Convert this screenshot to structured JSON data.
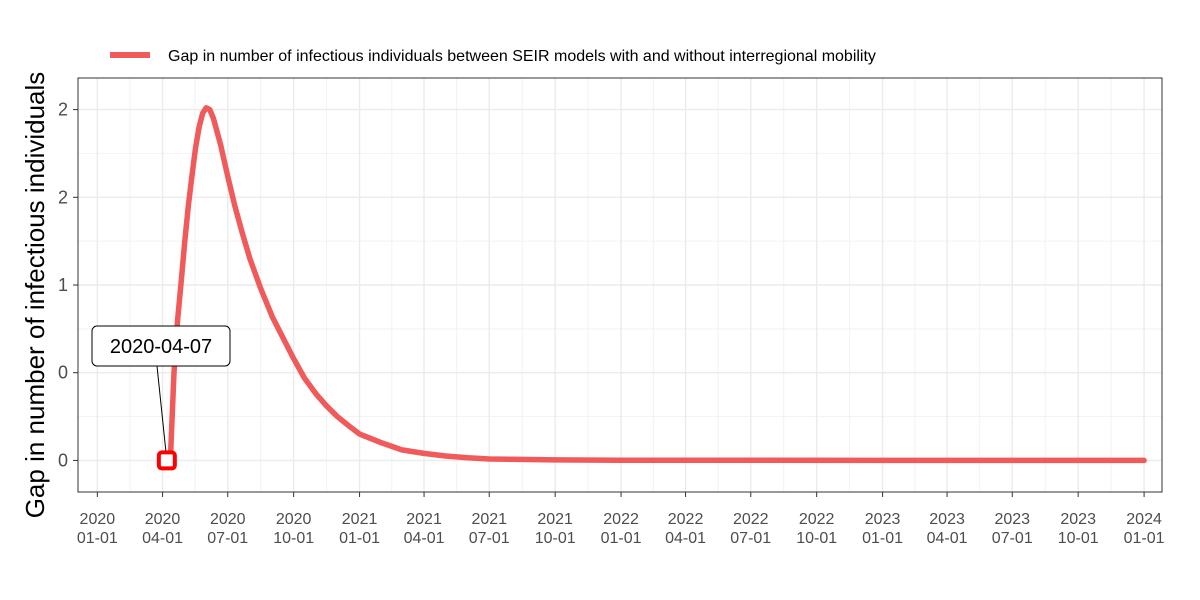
{
  "chart_data": {
    "type": "line",
    "ylabel": "Gap in number of infectious individuals",
    "xlabel": "",
    "legend": {
      "position": "top",
      "entries": [
        "Gap in number of infectious individuals between SEIR models with and without interregional mobility"
      ]
    },
    "grid": true,
    "x_range": [
      "2019-12-05",
      "2024-01-26"
    ],
    "y_range": [
      -0.18,
      2.18
    ],
    "x_ticks": [
      {
        "date": "2020-01-01",
        "label": [
          "2020",
          "01-01"
        ]
      },
      {
        "date": "2020-04-01",
        "label": [
          "2020",
          "04-01"
        ]
      },
      {
        "date": "2020-07-01",
        "label": [
          "2020",
          "07-01"
        ]
      },
      {
        "date": "2020-10-01",
        "label": [
          "2020",
          "10-01"
        ]
      },
      {
        "date": "2021-01-01",
        "label": [
          "2021",
          "01-01"
        ]
      },
      {
        "date": "2021-04-01",
        "label": [
          "2021",
          "04-01"
        ]
      },
      {
        "date": "2021-07-01",
        "label": [
          "2021",
          "07-01"
        ]
      },
      {
        "date": "2021-10-01",
        "label": [
          "2021",
          "10-01"
        ]
      },
      {
        "date": "2022-01-01",
        "label": [
          "2022",
          "01-01"
        ]
      },
      {
        "date": "2022-04-01",
        "label": [
          "2022",
          "04-01"
        ]
      },
      {
        "date": "2022-07-01",
        "label": [
          "2022",
          "07-01"
        ]
      },
      {
        "date": "2022-10-01",
        "label": [
          "2022",
          "10-01"
        ]
      },
      {
        "date": "2023-01-01",
        "label": [
          "2023",
          "01-01"
        ]
      },
      {
        "date": "2023-04-01",
        "label": [
          "2023",
          "04-01"
        ]
      },
      {
        "date": "2023-07-01",
        "label": [
          "2023",
          "07-01"
        ]
      },
      {
        "date": "2023-10-01",
        "label": [
          "2023",
          "10-01"
        ]
      },
      {
        "date": "2024-01-01",
        "label": [
          "2024",
          "01-01"
        ]
      }
    ],
    "y_ticks": [
      {
        "value": 0,
        "label": "0"
      },
      {
        "value": 0.5,
        "label": "0"
      },
      {
        "value": 1.0,
        "label": "1"
      },
      {
        "value": 1.5,
        "label": "2"
      },
      {
        "value": 2.0,
        "label": "2"
      }
    ],
    "series": [
      {
        "name": "Gap in number of infectious individuals between SEIR models with and without interregional mobility",
        "color": "#f05a5a",
        "x": [
          "2020-04-07",
          "2020-04-12",
          "2020-04-17",
          "2020-04-22",
          "2020-04-27",
          "2020-05-02",
          "2020-05-07",
          "2020-05-12",
          "2020-05-17",
          "2020-05-22",
          "2020-05-27",
          "2020-06-01",
          "2020-06-06",
          "2020-06-11",
          "2020-06-21",
          "2020-07-01",
          "2020-07-11",
          "2020-07-21",
          "2020-08-01",
          "2020-08-16",
          "2020-09-01",
          "2020-09-16",
          "2020-10-01",
          "2020-10-16",
          "2020-11-01",
          "2020-11-16",
          "2020-12-01",
          "2020-12-16",
          "2021-01-01",
          "2021-02-01",
          "2021-03-01",
          "2021-04-01",
          "2021-05-01",
          "2021-06-01",
          "2021-07-01",
          "2021-10-01",
          "2022-01-01",
          "2023-01-01",
          "2024-01-01"
        ],
        "y": [
          0.0,
          0.01,
          0.5,
          0.8,
          1.02,
          1.25,
          1.45,
          1.62,
          1.78,
          1.9,
          1.98,
          2.01,
          2.0,
          1.95,
          1.8,
          1.62,
          1.45,
          1.3,
          1.15,
          0.98,
          0.82,
          0.7,
          0.58,
          0.47,
          0.38,
          0.31,
          0.25,
          0.2,
          0.15,
          0.1,
          0.06,
          0.04,
          0.025,
          0.015,
          0.008,
          0.003,
          0.001,
          0.0,
          0.0
        ]
      }
    ],
    "annotations": [
      {
        "label": "2020-04-07",
        "x": "2020-04-07",
        "y": 0.0,
        "marker": "square",
        "marker_color": "#ff0000"
      }
    ]
  }
}
